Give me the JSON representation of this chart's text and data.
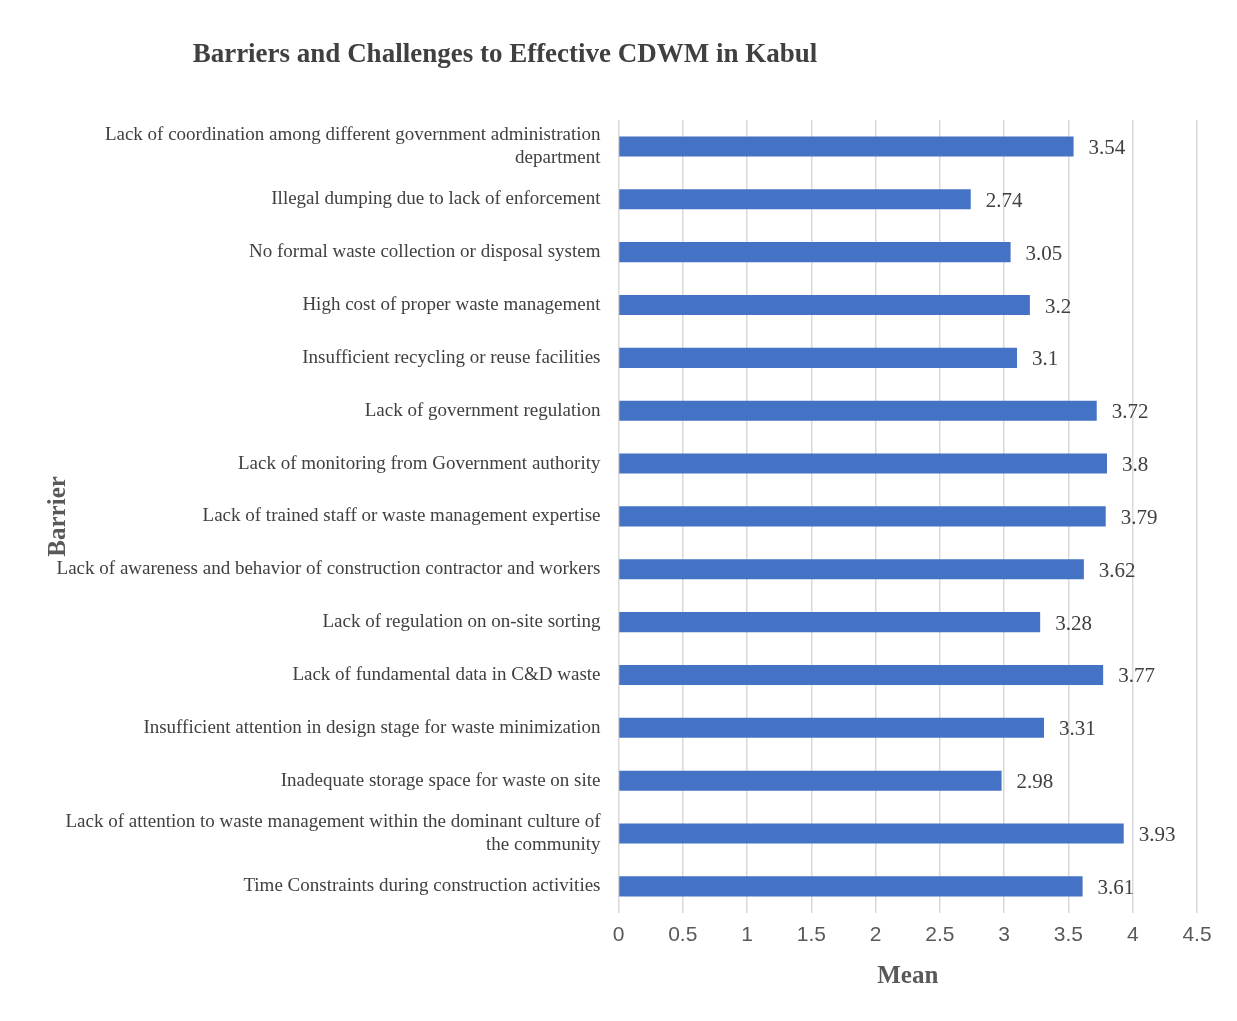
{
  "chart_data": {
    "type": "bar",
    "orientation": "horizontal",
    "title": "Barriers and Challenges to Effective CDWM in Kabul",
    "xlabel": "Mean",
    "ylabel": "Barrier",
    "categories": [
      "Lack of coordination among different government administration department",
      "Illegal dumping due to lack of enforcement",
      "No formal waste collection or disposal system",
      "High cost of proper waste management",
      "Insufficient recycling or reuse facilities",
      "Lack of government regulation",
      "Lack of monitoring from Government authority",
      "Lack of trained staff or waste management expertise",
      "Lack of awareness and behavior of construction contractor and workers",
      "Lack of regulation on on-site sorting",
      "Lack of fundamental data in C&D waste",
      "Insufficient attention in design stage for waste minimization",
      "Inadequate storage space for waste on site",
      "Lack of attention to waste management within the dominant culture of the community",
      "Time Constraints during construction activities"
    ],
    "values": [
      3.54,
      2.74,
      3.05,
      3.2,
      3.1,
      3.72,
      3.8,
      3.79,
      3.62,
      3.28,
      3.77,
      3.31,
      2.98,
      3.93,
      3.61
    ],
    "color": "#4472c4",
    "data_labels": true,
    "xlim": [
      0,
      4.5
    ],
    "xticks": [
      0,
      0.5,
      1,
      1.5,
      2,
      2.5,
      3,
      3.5,
      4,
      4.5
    ],
    "grid": "x",
    "legend": false
  }
}
